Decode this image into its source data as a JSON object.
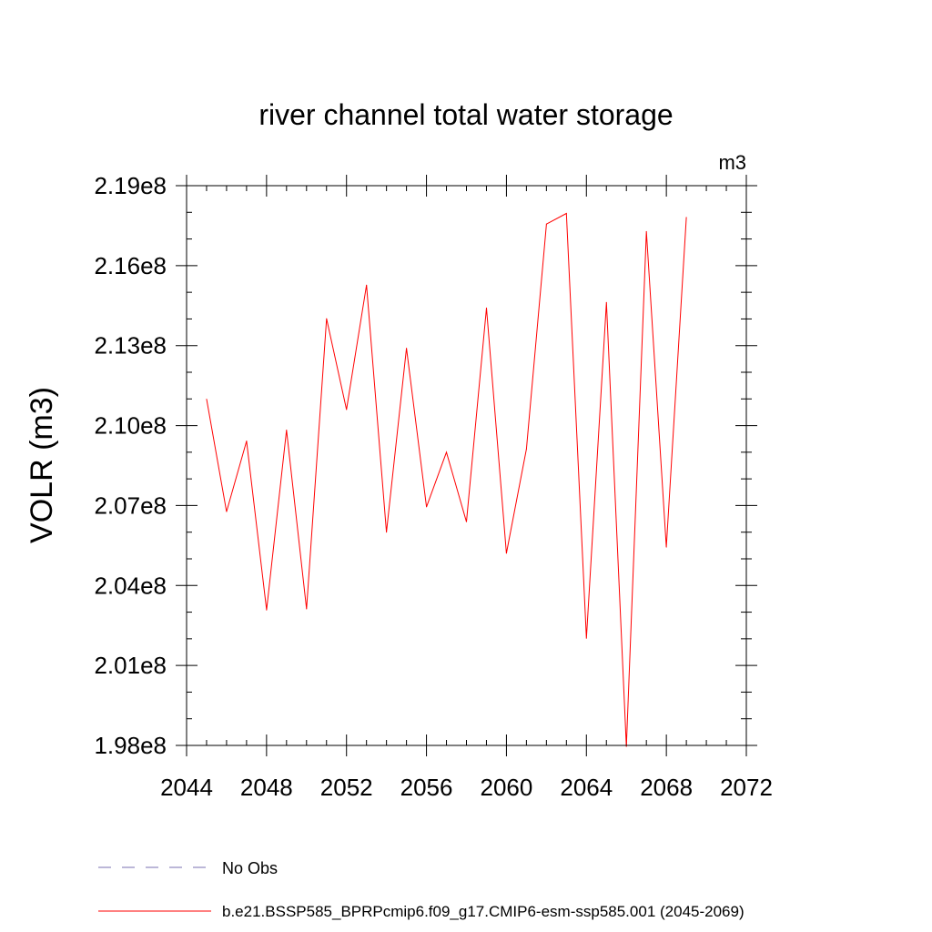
{
  "chart_data": {
    "type": "line",
    "title": "river channel total water storage",
    "units_label": "m3",
    "ylabel": "VOLR  (m3)",
    "xlabel": "",
    "xlim": [
      2044,
      2072
    ],
    "ylim": [
      198000000,
      219000000
    ],
    "x_ticks": [
      2044,
      2048,
      2052,
      2056,
      2060,
      2064,
      2068,
      2072
    ],
    "x_tick_labels": [
      "2044",
      "2048",
      "2052",
      "2056",
      "2060",
      "2064",
      "2068",
      "2072"
    ],
    "y_ticks": [
      198000000,
      201000000,
      204000000,
      207000000,
      210000000,
      213000000,
      216000000,
      219000000
    ],
    "y_tick_labels": [
      "1.98e8",
      "2.01e8",
      "2.04e8",
      "2.07e8",
      "2.10e8",
      "2.13e8",
      "2.16e8",
      "2.19e8"
    ],
    "grid": false,
    "legend_position": "bottom",
    "series": [
      {
        "name": "b.e21.BSSP585_BPRPcmip6.f09_g17.CMIP6-esm-ssp585.001 (2045-2069)",
        "color": "#ff0000",
        "x": [
          2045,
          2046,
          2047,
          2048,
          2049,
          2050,
          2051,
          2052,
          2053,
          2054,
          2055,
          2056,
          2057,
          2058,
          2059,
          2060,
          2061,
          2062,
          2063,
          2064,
          2065,
          2066,
          2067,
          2068,
          2069
        ],
        "values": [
          210990000,
          206770000,
          209420000,
          203080000,
          209830000,
          203120000,
          214010000,
          210600000,
          215270000,
          206000000,
          212900000,
          206950000,
          209000000,
          206390000,
          214410000,
          205210000,
          209120000,
          217560000,
          217960000,
          202020000,
          214620000,
          197960000,
          217280000,
          205440000,
          217810000
        ]
      }
    ],
    "legend": [
      {
        "label": "No Obs",
        "style": "dashed",
        "color": "#7a6fb0"
      },
      {
        "label": "b.e21.BSSP585_BPRPcmip6.f09_g17.CMIP6-esm-ssp585.001 (2045-2069)",
        "style": "solid",
        "color": "#ff0000"
      }
    ]
  }
}
